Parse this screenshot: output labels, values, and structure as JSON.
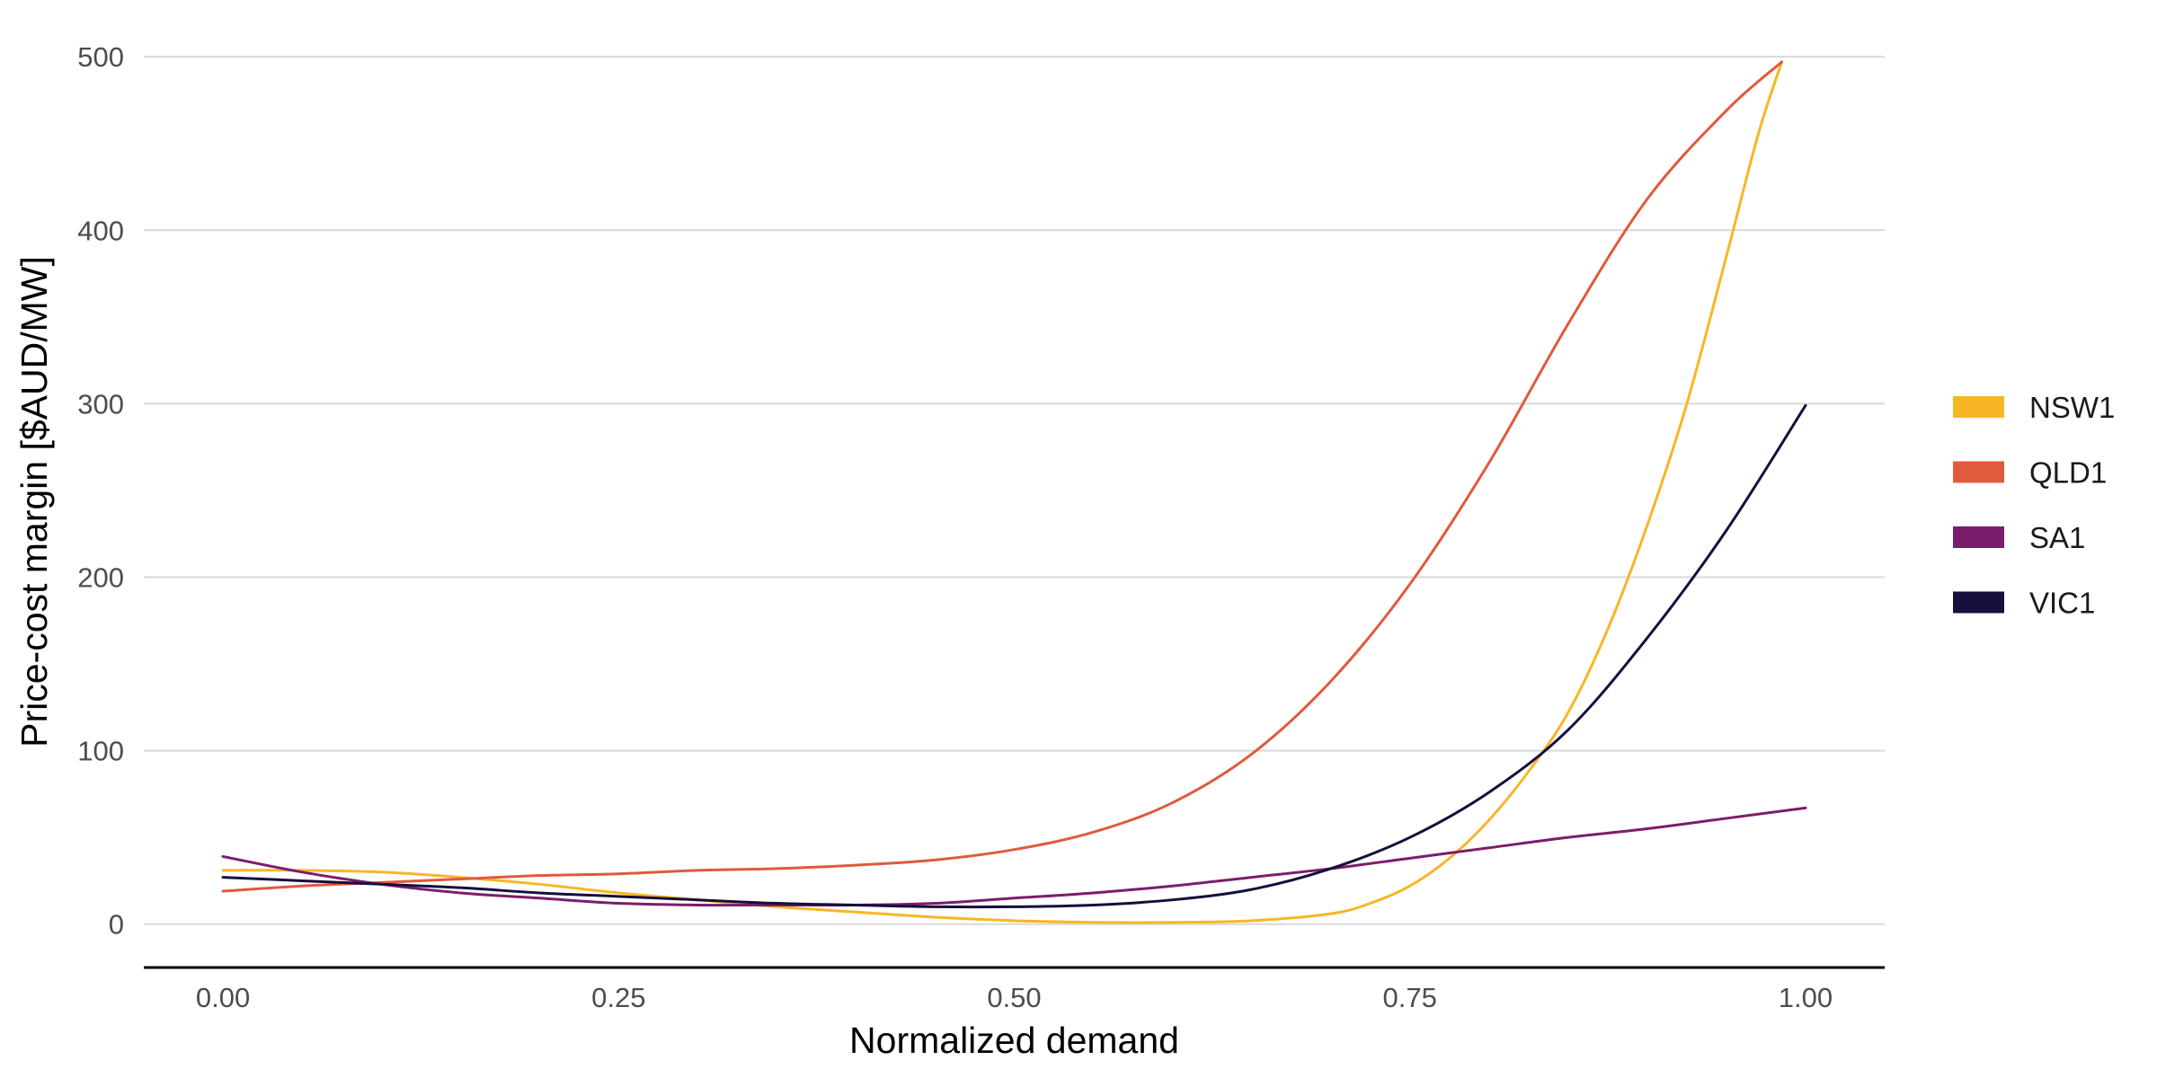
{
  "chart_data": {
    "type": "line",
    "title": "",
    "xlabel": "Normalized demand",
    "ylabel": "Price-cost margin [$AUD/MW]",
    "xlim": [
      -0.05,
      1.05
    ],
    "ylim": [
      -25,
      512
    ],
    "x_ticks": [
      0,
      0.25,
      0.5,
      0.75,
      1
    ],
    "x_tick_labels": [
      "0.00",
      "0.25",
      "0.50",
      "0.75",
      "1.00"
    ],
    "y_ticks": [
      0,
      100,
      200,
      300,
      400,
      500
    ],
    "y_tick_labels": [
      "0",
      "100",
      "200",
      "300",
      "400",
      "500"
    ],
    "grid": "horizontal",
    "legend_position": "right",
    "series": [
      {
        "name": "NSW1",
        "color": "#F8B625",
        "x": [
          0,
          0.05,
          0.1,
          0.15,
          0.2,
          0.25,
          0.3,
          0.35,
          0.4,
          0.45,
          0.5,
          0.55,
          0.6,
          0.65,
          0.7,
          0.725,
          0.75,
          0.775,
          0.8,
          0.825,
          0.85,
          0.875,
          0.9,
          0.925,
          0.95,
          0.97,
          0.985
        ],
        "values": [
          31,
          31,
          30,
          27,
          23,
          18,
          14,
          10,
          7,
          4,
          2,
          1,
          1,
          2,
          6,
          12,
          22,
          38,
          60,
          88,
          122,
          170,
          230,
          300,
          385,
          455,
          497
        ]
      },
      {
        "name": "QLD1",
        "color": "#E05A3D",
        "x": [
          0,
          0.05,
          0.1,
          0.15,
          0.2,
          0.25,
          0.3,
          0.35,
          0.4,
          0.45,
          0.5,
          0.55,
          0.6,
          0.65,
          0.7,
          0.75,
          0.8,
          0.85,
          0.9,
          0.95,
          0.985
        ],
        "values": [
          19,
          22,
          24,
          26,
          28,
          29,
          31,
          32,
          34,
          37,
          43,
          53,
          70,
          98,
          140,
          196,
          266,
          346,
          418,
          469,
          497
        ]
      },
      {
        "name": "SA1",
        "color": "#7B1D6C",
        "x": [
          0,
          0.05,
          0.1,
          0.15,
          0.2,
          0.25,
          0.3,
          0.35,
          0.4,
          0.45,
          0.5,
          0.55,
          0.6,
          0.65,
          0.7,
          0.75,
          0.8,
          0.85,
          0.9,
          0.95,
          1
        ],
        "values": [
          39,
          30,
          23,
          18,
          15,
          12,
          11,
          11,
          11,
          12,
          15,
          18,
          22,
          27,
          32,
          38,
          44,
          50,
          55,
          61,
          67
        ]
      },
      {
        "name": "VIC1",
        "color": "#160E3C",
        "x": [
          0,
          0.05,
          0.1,
          0.15,
          0.2,
          0.25,
          0.3,
          0.35,
          0.4,
          0.45,
          0.5,
          0.55,
          0.6,
          0.65,
          0.7,
          0.75,
          0.8,
          0.85,
          0.9,
          0.95,
          1
        ],
        "values": [
          27,
          25,
          23,
          21,
          18,
          16,
          14,
          12,
          11,
          10,
          10,
          11,
          14,
          20,
          32,
          50,
          76,
          112,
          165,
          227,
          299
        ]
      }
    ]
  }
}
